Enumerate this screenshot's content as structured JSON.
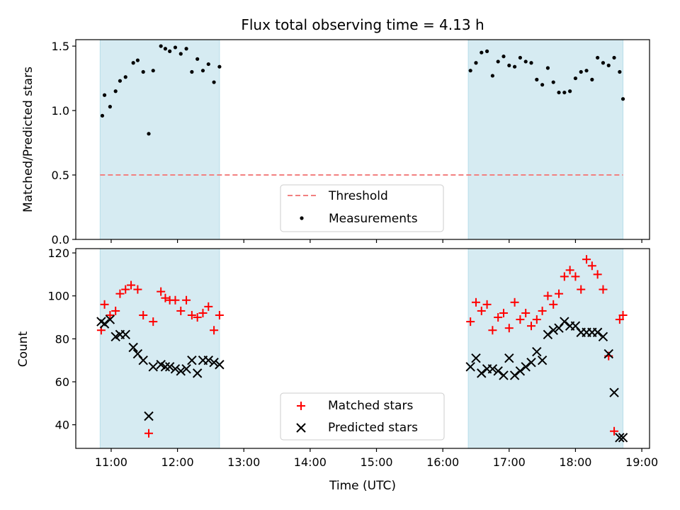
{
  "chart_data": [
    {
      "type": "scatter",
      "title": "Flux total observing time = 4.13 h",
      "ylabel": "Matched/Predicted stars",
      "ylim": [
        0,
        1.55
      ],
      "yticks": [
        0.0,
        0.5,
        1.0,
        1.5
      ],
      "ytick_labels": [
        "0.0",
        "0.5",
        "1.0",
        "1.5"
      ],
      "shaded_intervals": [
        [
          "10:50",
          "12:38"
        ],
        [
          "16:23",
          "18:43"
        ]
      ],
      "threshold": {
        "name": "Threshold",
        "value": 0.5,
        "x_range": [
          "10:50",
          "18:43"
        ],
        "color": "#f28080",
        "style": "dashed"
      },
      "series": [
        {
          "name": "Measurements",
          "marker": "dot",
          "color": "#000000",
          "x": [
            "10:52",
            "10:54",
            "10:59",
            "11:04",
            "11:08",
            "11:13",
            "11:20",
            "11:24",
            "11:29",
            "11:34",
            "11:38",
            "11:45",
            "11:49",
            "11:53",
            "11:58",
            "12:03",
            "12:08",
            "12:13",
            "12:18",
            "12:23",
            "12:28",
            "12:33",
            "12:38",
            "16:25",
            "16:30",
            "16:35",
            "16:40",
            "16:45",
            "16:50",
            "16:55",
            "17:00",
            "17:05",
            "17:10",
            "17:15",
            "17:20",
            "17:25",
            "17:30",
            "17:35",
            "17:40",
            "17:45",
            "17:50",
            "17:55",
            "18:00",
            "18:05",
            "18:10",
            "18:15",
            "18:20",
            "18:25",
            "18:30",
            "18:35",
            "18:40",
            "18:43"
          ],
          "y": [
            0.96,
            1.12,
            1.03,
            1.15,
            1.23,
            1.26,
            1.37,
            1.39,
            1.3,
            0.82,
            1.31,
            1.5,
            1.48,
            1.46,
            1.49,
            1.44,
            1.48,
            1.3,
            1.4,
            1.31,
            1.36,
            1.22,
            1.34,
            1.31,
            1.37,
            1.45,
            1.46,
            1.27,
            1.38,
            1.42,
            1.35,
            1.34,
            1.41,
            1.38,
            1.37,
            1.24,
            1.2,
            1.33,
            1.22,
            1.14,
            1.14,
            1.15,
            1.25,
            1.3,
            1.31,
            1.24,
            1.41,
            1.37,
            1.35,
            1.41,
            1.3,
            1.09
          ]
        }
      ],
      "legend": {
        "position": "bottom-center",
        "entries": [
          "Threshold",
          "Measurements"
        ]
      }
    },
    {
      "type": "scatter",
      "xlabel": "Time (UTC)",
      "ylabel": "Count",
      "ylim": [
        29,
        122
      ],
      "yticks": [
        40,
        60,
        80,
        100,
        120
      ],
      "xlim": [
        "10:28",
        "19:07"
      ],
      "xticks": [
        "11:00",
        "12:00",
        "13:00",
        "14:00",
        "15:00",
        "16:00",
        "17:00",
        "18:00",
        "19:00"
      ],
      "shaded_intervals": [
        [
          "10:50",
          "12:38"
        ],
        [
          "16:23",
          "18:43"
        ]
      ],
      "series": [
        {
          "name": "Matched stars",
          "marker": "plus",
          "color": "#ff0000",
          "x": [
            "10:51",
            "10:54",
            "10:59",
            "11:04",
            "11:08",
            "11:13",
            "11:18",
            "11:24",
            "11:29",
            "11:34",
            "11:38",
            "11:45",
            "11:49",
            "11:53",
            "11:58",
            "12:03",
            "12:08",
            "12:13",
            "12:18",
            "12:23",
            "12:28",
            "12:33",
            "12:38",
            "16:25",
            "16:30",
            "16:35",
            "16:40",
            "16:45",
            "16:50",
            "16:55",
            "17:00",
            "17:05",
            "17:10",
            "17:15",
            "17:20",
            "17:25",
            "17:30",
            "17:35",
            "17:40",
            "17:45",
            "17:50",
            "17:55",
            "18:00",
            "18:05",
            "18:10",
            "18:15",
            "18:20",
            "18:25",
            "18:30",
            "18:35",
            "18:40",
            "18:43"
          ],
          "y": [
            84,
            96,
            91,
            93,
            101,
            103,
            105,
            103,
            91,
            36,
            88,
            102,
            99,
            98,
            98,
            93,
            98,
            91,
            90,
            92,
            95,
            84,
            91,
            88,
            97,
            93,
            96,
            84,
            90,
            92,
            85,
            97,
            89,
            92,
            86,
            89,
            93,
            100,
            96,
            101,
            109,
            112,
            109,
            103,
            117,
            114,
            110,
            103,
            72,
            37,
            89,
            91
          ]
        },
        {
          "name": "Predicted stars",
          "marker": "x",
          "color": "#000000",
          "x": [
            "10:51",
            "10:54",
            "10:59",
            "11:04",
            "11:08",
            "11:13",
            "11:20",
            "11:24",
            "11:29",
            "11:34",
            "11:38",
            "11:45",
            "11:49",
            "11:53",
            "11:58",
            "12:03",
            "12:08",
            "12:13",
            "12:18",
            "12:23",
            "12:28",
            "12:33",
            "12:38",
            "16:25",
            "16:30",
            "16:35",
            "16:40",
            "16:45",
            "16:50",
            "16:55",
            "17:00",
            "17:05",
            "17:10",
            "17:15",
            "17:20",
            "17:25",
            "17:30",
            "17:35",
            "17:40",
            "17:45",
            "17:50",
            "17:55",
            "18:00",
            "18:05",
            "18:10",
            "18:15",
            "18:20",
            "18:25",
            "18:30",
            "18:35",
            "18:40",
            "18:43"
          ],
          "y": [
            88,
            87,
            89,
            81,
            82,
            82,
            76,
            73,
            70,
            44,
            67,
            68,
            67,
            67,
            66,
            65,
            66,
            70,
            64,
            70,
            70,
            69,
            68,
            67,
            71,
            64,
            66,
            66,
            65,
            63,
            71,
            63,
            65,
            67,
            69,
            74,
            70,
            82,
            84,
            85,
            88,
            86,
            86,
            83,
            83,
            83,
            83,
            81,
            73,
            55,
            34,
            34
          ]
        }
      ],
      "legend": {
        "position": "bottom-center",
        "entries": [
          "Matched stars",
          "Predicted stars"
        ]
      }
    }
  ]
}
